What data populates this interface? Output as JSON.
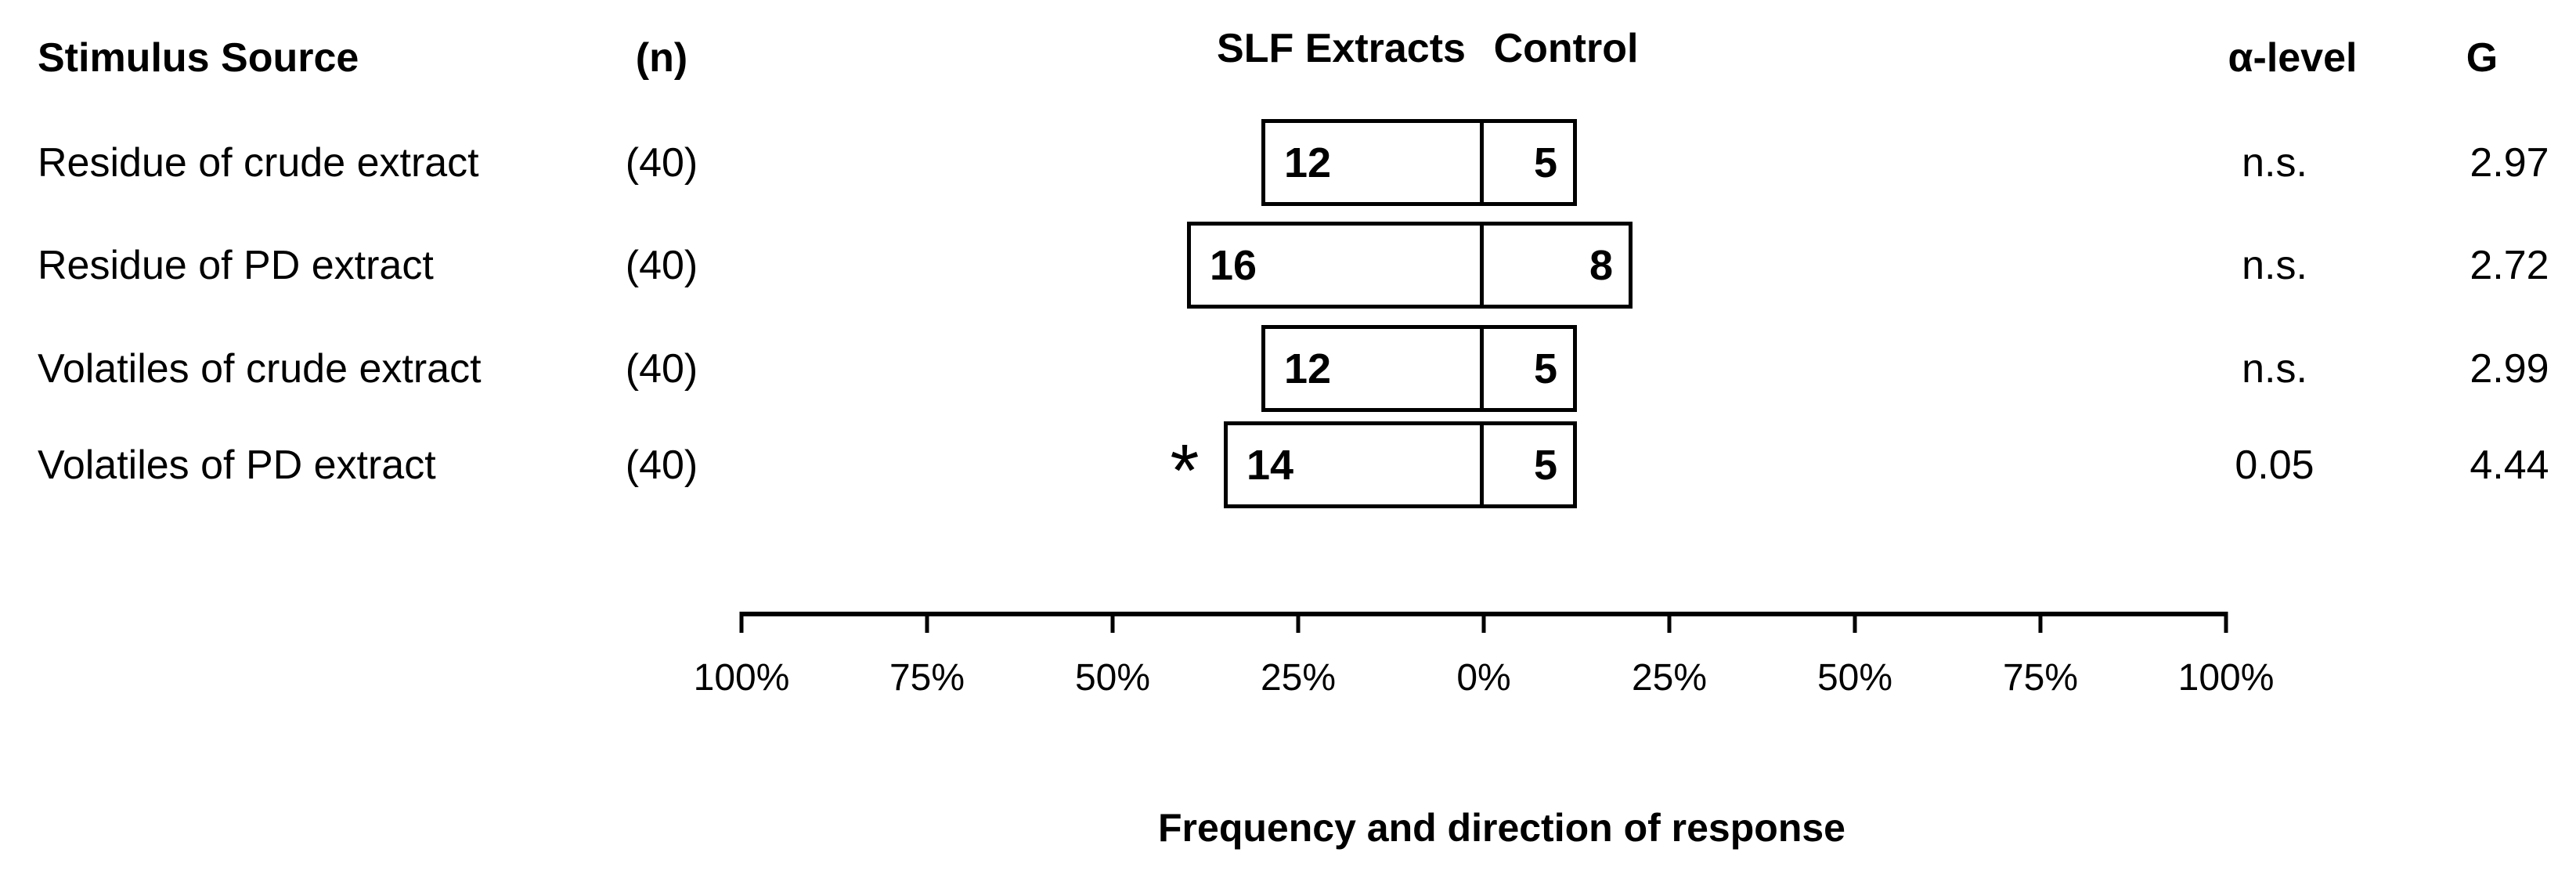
{
  "figure": {
    "background_color": "#ffffff",
    "text_color": "#000000"
  },
  "headers": {
    "stimulus_source": "Stimulus Source",
    "n": "(n)",
    "slf_extracts": "SLF Extracts",
    "control": "Control",
    "alpha_level": "α-level",
    "g": "G"
  },
  "chart_data": {
    "type": "bar",
    "variant": "diverging_paired_counts",
    "title": "",
    "xlabel": "Frequency and direction of response",
    "x_axis": {
      "tick_labels": [
        "100%",
        "75%",
        "50%",
        "25%",
        "0%",
        "25%",
        "50%",
        "75%",
        "100%"
      ],
      "tick_values_percent": [
        -100,
        -75,
        -50,
        -25,
        0,
        25,
        50,
        75,
        100
      ],
      "left_side_label": "SLF Extracts",
      "right_side_label": "Control"
    },
    "rows": [
      {
        "label": "Residue of crude extract",
        "n_label": "(40)",
        "n": 40,
        "slf_count": 12,
        "control_count": 5,
        "slf_pct": 30,
        "control_pct": 12.5,
        "alpha": "n.s.",
        "g": "2.97",
        "significant": false,
        "star": ""
      },
      {
        "label": "Residue of PD extract",
        "n_label": "(40)",
        "n": 40,
        "slf_count": 16,
        "control_count": 8,
        "slf_pct": 40,
        "control_pct": 20,
        "alpha": "n.s.",
        "g": "2.72",
        "significant": false,
        "star": ""
      },
      {
        "label": "Volatiles of crude extract",
        "n_label": "(40)",
        "n": 40,
        "slf_count": 12,
        "control_count": 5,
        "slf_pct": 30,
        "control_pct": 12.5,
        "alpha": "n.s.",
        "g": "2.99",
        "significant": false,
        "star": ""
      },
      {
        "label": "Volatiles of PD extract",
        "n_label": "(40)",
        "n": 40,
        "slf_count": 14,
        "control_count": 5,
        "slf_pct": 35,
        "control_pct": 12.5,
        "alpha": "0.05",
        "g": "4.44",
        "significant": true,
        "star": "*"
      }
    ]
  }
}
